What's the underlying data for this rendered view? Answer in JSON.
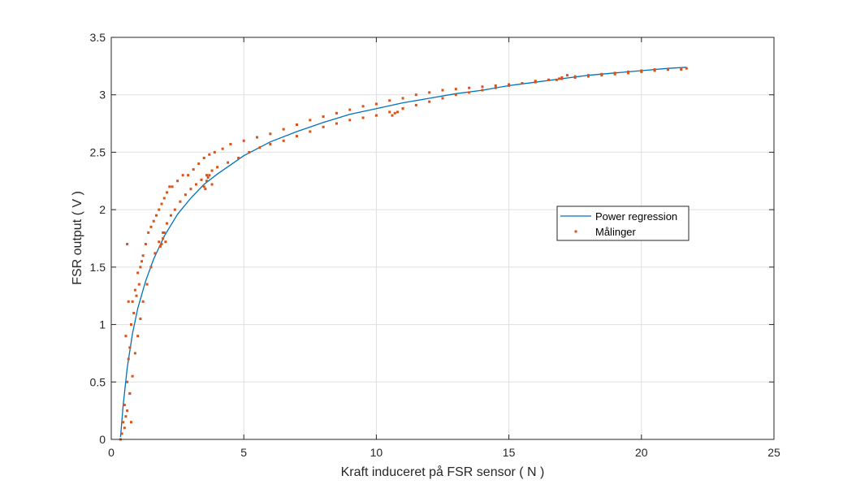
{
  "chart_data": {
    "type": "scatter",
    "title": "",
    "xlabel": "Kraft induceret på FSR sensor ( N )",
    "ylabel": "FSR output ( V )",
    "xlim": [
      0,
      25
    ],
    "ylim": [
      0,
      3.5
    ],
    "xticks": [
      "0",
      "5",
      "10",
      "15",
      "20",
      "25"
    ],
    "yticks": [
      "0",
      "0.5",
      "1",
      "1.5",
      "2",
      "2.5",
      "3",
      "3.5"
    ],
    "grid": true,
    "legend_position": "center-right",
    "colors": {
      "regression": "#0072BD",
      "measurements": "#D95319",
      "grid": "#DFDFDF",
      "axis": "#262626"
    },
    "series": [
      {
        "name": "Power regression",
        "kind": "line",
        "x": [
          0.35,
          0.45,
          0.6,
          0.8,
          1.0,
          1.3,
          1.6,
          2.0,
          2.5,
          3.0,
          3.5,
          4.0,
          5.0,
          6.0,
          7.0,
          8.0,
          9.0,
          10.0,
          11.0,
          12.0,
          13.0,
          14.0,
          15.0,
          16.0,
          17.0,
          18.0,
          19.0,
          20.0,
          21.0,
          21.7
        ],
        "y": [
          0.02,
          0.3,
          0.62,
          0.92,
          1.14,
          1.38,
          1.57,
          1.77,
          1.96,
          2.1,
          2.22,
          2.31,
          2.47,
          2.59,
          2.68,
          2.76,
          2.83,
          2.88,
          2.93,
          2.97,
          3.01,
          3.04,
          3.08,
          3.11,
          3.14,
          3.17,
          3.19,
          3.21,
          3.23,
          3.24
        ]
      },
      {
        "name": "Målinger",
        "kind": "scatter",
        "x": [
          0.35,
          0.4,
          0.45,
          0.5,
          0.55,
          0.6,
          0.65,
          0.7,
          0.75,
          0.8,
          0.85,
          0.9,
          0.95,
          1.0,
          1.05,
          1.1,
          1.15,
          1.2,
          1.3,
          1.4,
          1.5,
          1.6,
          1.7,
          1.8,
          1.9,
          2.0,
          2.1,
          2.2,
          2.3,
          2.5,
          2.7,
          2.9,
          3.1,
          3.3,
          3.5,
          3.7,
          3.9,
          4.2,
          4.5,
          5.0,
          5.5,
          6.0,
          6.5,
          7.0,
          7.5,
          8.0,
          8.5,
          9.0,
          9.5,
          10.0,
          10.5,
          11.0,
          11.5,
          12.0,
          12.5,
          13.0,
          13.5,
          14.0,
          14.5,
          15.0,
          15.5,
          16.0,
          16.5,
          17.0,
          17.5,
          18.0,
          18.5,
          19.0,
          19.5,
          20.0,
          20.5,
          21.0,
          21.5,
          21.7,
          0.5,
          0.6,
          0.7,
          0.8,
          0.9,
          1.0,
          1.1,
          1.2,
          1.35,
          1.5,
          1.65,
          1.8,
          1.95,
          2.1,
          2.25,
          2.4,
          2.6,
          2.8,
          3.0,
          3.2,
          3.4,
          3.6,
          3.8,
          4.0,
          4.4,
          4.8,
          5.2,
          5.6,
          6.0,
          6.5,
          7.0,
          7.5,
          8.0,
          8.5,
          9.0,
          9.5,
          10.0,
          10.5,
          11.0,
          11.5,
          12.0,
          12.5,
          13.0,
          13.5,
          14.0,
          14.5,
          15.0,
          15.5,
          16.0,
          16.5,
          17.0,
          17.5,
          18.0,
          18.5,
          19.0,
          19.5,
          20.0,
          20.5,
          21.0,
          21.5,
          3.5,
          3.6,
          3.7,
          3.8,
          3.65,
          3.55,
          1.9,
          1.95,
          2.0,
          2.05,
          1.85,
          10.6,
          10.8,
          11.0,
          10.7,
          16.8,
          17.0,
          17.2,
          16.9,
          0.6,
          0.65,
          0.55,
          0.7,
          0.75
        ],
        "y": [
          0.0,
          0.05,
          0.15,
          0.3,
          0.2,
          0.5,
          0.7,
          0.8,
          1.0,
          1.2,
          1.1,
          1.3,
          1.25,
          1.45,
          1.35,
          1.5,
          1.55,
          1.6,
          1.7,
          1.8,
          1.85,
          1.9,
          1.95,
          2.0,
          2.05,
          2.1,
          2.15,
          2.2,
          2.2,
          2.25,
          2.3,
          2.3,
          2.35,
          2.4,
          2.45,
          2.48,
          2.5,
          2.53,
          2.57,
          2.6,
          2.63,
          2.66,
          2.7,
          2.74,
          2.78,
          2.81,
          2.84,
          2.87,
          2.9,
          2.92,
          2.95,
          2.97,
          3.0,
          3.02,
          3.04,
          3.05,
          3.06,
          3.07,
          3.08,
          3.09,
          3.1,
          3.12,
          3.13,
          3.14,
          3.15,
          3.16,
          3.17,
          3.18,
          3.19,
          3.2,
          3.21,
          3.22,
          3.22,
          3.23,
          0.1,
          0.25,
          0.4,
          0.55,
          0.75,
          0.9,
          1.05,
          1.2,
          1.35,
          1.5,
          1.62,
          1.72,
          1.8,
          1.88,
          1.95,
          2.0,
          2.07,
          2.13,
          2.18,
          2.22,
          2.26,
          2.3,
          2.34,
          2.37,
          2.41,
          2.45,
          2.5,
          2.54,
          2.57,
          2.6,
          2.64,
          2.68,
          2.72,
          2.75,
          2.78,
          2.8,
          2.82,
          2.85,
          2.88,
          2.91,
          2.94,
          2.97,
          3.0,
          3.02,
          3.04,
          3.06,
          3.08,
          3.1,
          3.11,
          3.13,
          3.14,
          3.16,
          3.17,
          3.18,
          3.19,
          3.2,
          3.21,
          3.22,
          3.22,
          3.23,
          2.2,
          2.25,
          2.3,
          2.22,
          2.28,
          2.18,
          1.7,
          1.75,
          1.8,
          1.72,
          1.68,
          2.82,
          2.85,
          2.88,
          2.84,
          3.13,
          3.15,
          3.17,
          3.14,
          1.7,
          1.2,
          0.9,
          0.4,
          0.15
        ]
      }
    ]
  }
}
